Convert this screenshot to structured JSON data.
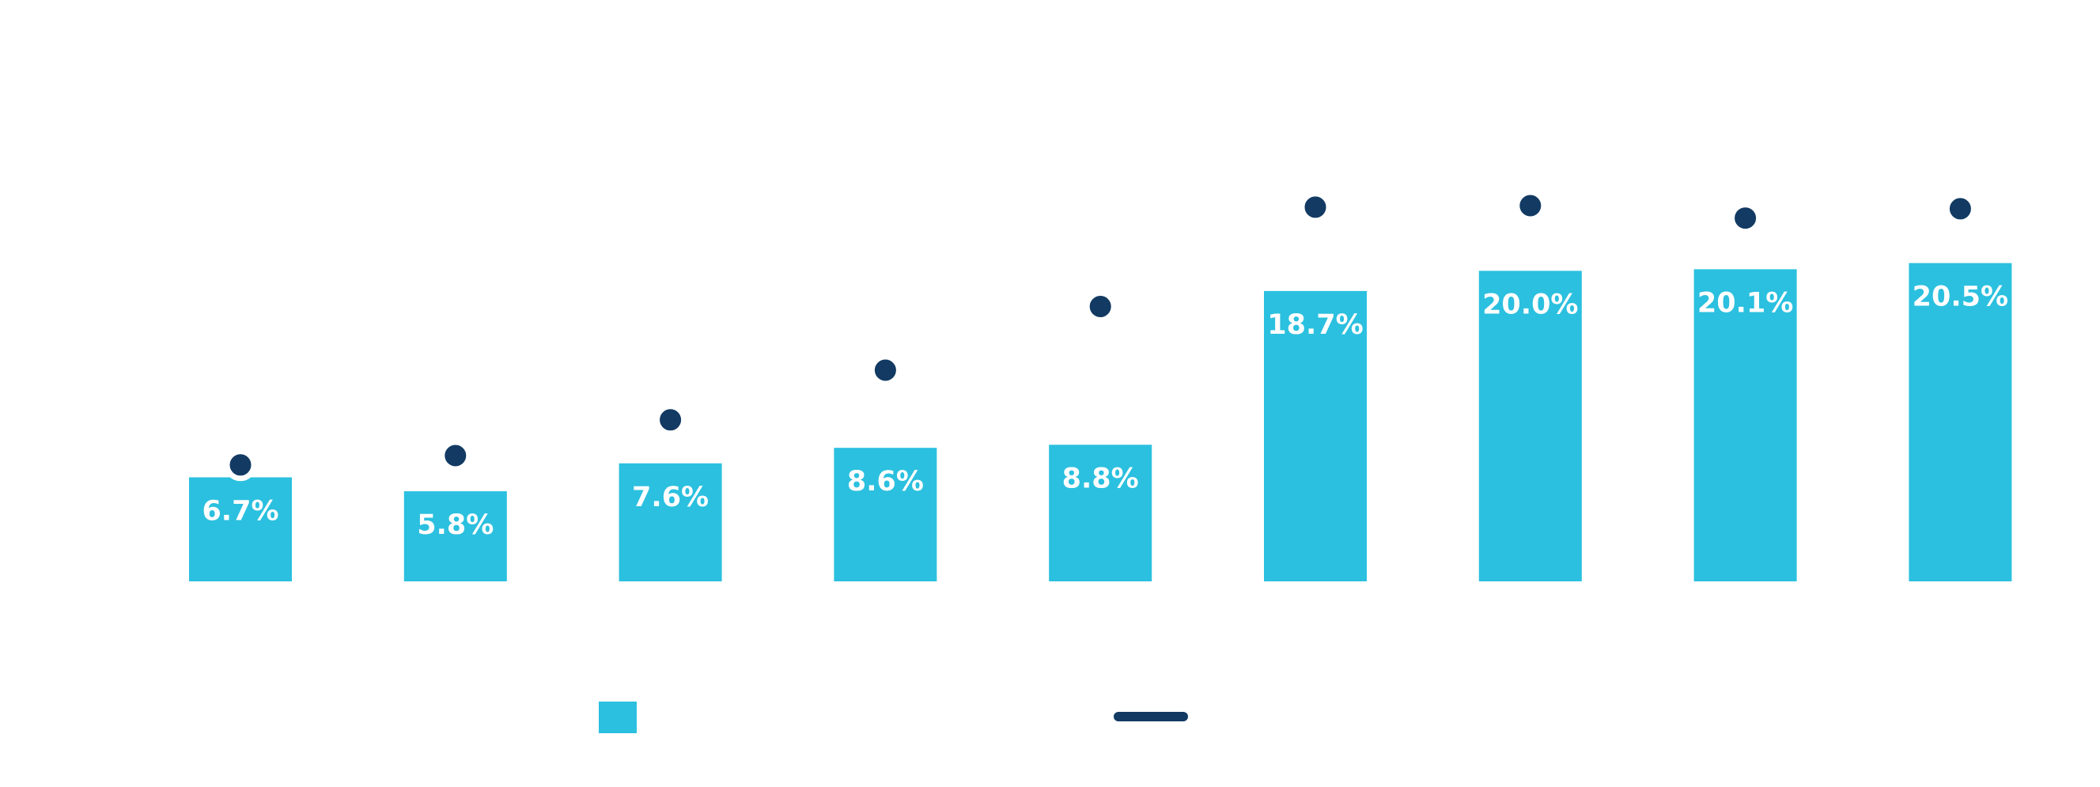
{
  "chart_data": {
    "type": "bar",
    "categories": [
      "",
      "",
      "",
      "",
      "",
      "",
      "",
      "",
      ""
    ],
    "series": [
      {
        "kind": "bar",
        "color": "#2bc0df",
        "values": [
          6.7,
          5.8,
          7.6,
          8.6,
          8.8,
          18.7,
          20.0,
          20.1,
          20.5
        ],
        "labels": [
          "6.7%",
          "5.8%",
          "7.6%",
          "8.6%",
          "8.8%",
          "18.7%",
          "20.0%",
          "20.1%",
          "20.5%"
        ]
      },
      {
        "kind": "point",
        "color": "#123a63",
        "values": [
          7.5,
          8.1,
          10.4,
          13.6,
          17.7,
          24.1,
          24.2,
          23.4,
          24.0
        ]
      }
    ],
    "ylim": [
      0,
      28
    ],
    "grid": false,
    "legend": "bottom-center"
  }
}
